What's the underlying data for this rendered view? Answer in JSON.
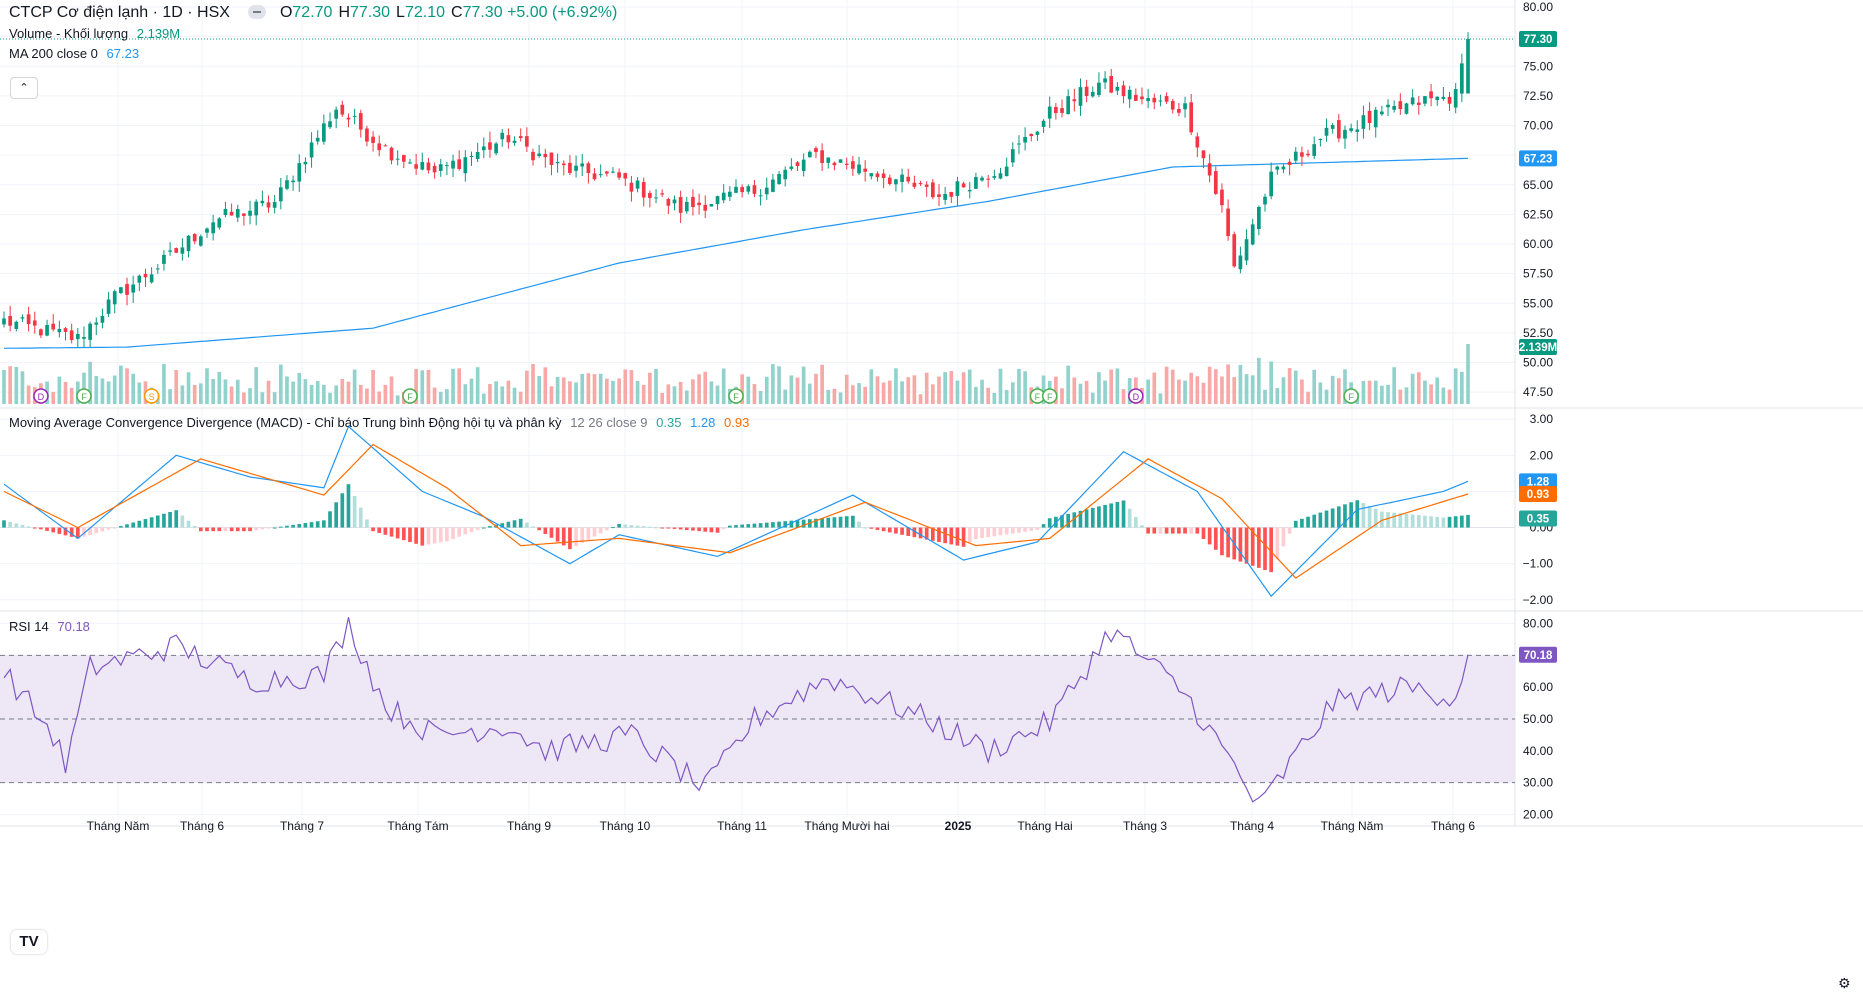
{
  "header": {
    "symbol_title": "CTCP Cơ điện lạnh · 1D · HSX",
    "ohlc": [
      {
        "label": "O",
        "value": "72.70"
      },
      {
        "label": "H",
        "value": "77.30"
      },
      {
        "label": "L",
        "value": "72.10"
      },
      {
        "label": "C",
        "value": "77.30"
      }
    ],
    "change": "+5.00 (+6.92%)"
  },
  "legends": {
    "volume_label": "Volume - Khối lượng",
    "volume_value": "2.139M",
    "ma_label": "MA 200 close 0",
    "ma_value": "67.23",
    "macd_label": "Moving Average Convergence Divergence (MACD) - Chỉ báo Trung bình Động hội tụ và phân kỳ",
    "macd_params": "12 26 close 9",
    "macd_hist_value": "0.35",
    "macd_value": "1.28",
    "macd_signal_value": "0.93",
    "rsi_label": "RSI 14",
    "rsi_value": "70.18"
  },
  "colors": {
    "up": "#089981",
    "down": "#f23645",
    "vol_up": "#92d2cc",
    "vol_down": "#f7a9a7",
    "ma": "#2196f3",
    "macd": "#2196f3",
    "signal": "#ff6d00",
    "hist_up_strong": "#26a69a",
    "hist_up_weak": "#b2dfdb",
    "hist_down_strong": "#ff5252",
    "hist_down_weak": "#ffcdd2",
    "rsi": "#7e57c2",
    "rsi_band": "#ede7f6"
  },
  "icons": {
    "logo": "tradingview-logo-icon",
    "settings": "gear-icon",
    "collapse": "chevron-up-icon"
  },
  "logo_text": "TV",
  "chart_data": [
    {
      "type": "candlestick",
      "ylim": [
        46.5,
        80
      ],
      "y_ticks": [
        "80.00",
        "77.50",
        "75.00",
        "72.50",
        "70.00",
        "67.50",
        "65.00",
        "62.50",
        "60.00",
        "57.50",
        "55.00",
        "52.50",
        "50.00",
        "47.50"
      ],
      "x_tick_labels": [
        "Tháng Năm",
        "Tháng 6",
        "Tháng 7",
        "Tháng Tám",
        "Tháng 9",
        "Tháng 10",
        "Tháng 11",
        "Tháng Mười hai",
        "2025",
        "Tháng Hai",
        "Tháng 3",
        "Tháng 4",
        "Tháng Năm",
        "Tháng 6"
      ],
      "last_price_label": "77.30",
      "ma_label_value": "67.23",
      "volume_label_value": "2.139M",
      "key_levels": [
        {
          "x": 0,
          "close": 53.5
        },
        {
          "x": 12,
          "close": 52.0
        },
        {
          "x": 18,
          "close": 55.5
        },
        {
          "x": 26,
          "close": 58.5
        },
        {
          "x": 34,
          "close": 62.0
        },
        {
          "x": 44,
          "close": 63.5
        },
        {
          "x": 54,
          "close": 71.5
        },
        {
          "x": 62,
          "close": 68.0
        },
        {
          "x": 70,
          "close": 66.0
        },
        {
          "x": 82,
          "close": 69.0
        },
        {
          "x": 90,
          "close": 66.5
        },
        {
          "x": 100,
          "close": 65.5
        },
        {
          "x": 110,
          "close": 63.0
        },
        {
          "x": 122,
          "close": 64.5
        },
        {
          "x": 132,
          "close": 67.5
        },
        {
          "x": 142,
          "close": 66.0
        },
        {
          "x": 152,
          "close": 64.0
        },
        {
          "x": 162,
          "close": 66.5
        },
        {
          "x": 170,
          "close": 71.0
        },
        {
          "x": 178,
          "close": 73.5
        },
        {
          "x": 186,
          "close": 72.0
        },
        {
          "x": 192,
          "close": 71.5
        },
        {
          "x": 198,
          "close": 63.0
        },
        {
          "x": 200,
          "close": 58.0
        },
        {
          "x": 206,
          "close": 65.5
        },
        {
          "x": 214,
          "close": 69.0
        },
        {
          "x": 222,
          "close": 70.5
        },
        {
          "x": 230,
          "close": 72.0
        },
        {
          "x": 236,
          "close": 72.5
        },
        {
          "x": 238,
          "close": 77.3
        }
      ],
      "ma200": [
        {
          "x": 0,
          "y": 51.2
        },
        {
          "x": 20,
          "y": 51.3
        },
        {
          "x": 60,
          "y": 52.9
        },
        {
          "x": 100,
          "y": 58.4
        },
        {
          "x": 130,
          "y": 61.2
        },
        {
          "x": 160,
          "y": 63.6
        },
        {
          "x": 190,
          "y": 66.5
        },
        {
          "x": 238,
          "y": 67.23
        }
      ],
      "signals": [
        {
          "x": 6,
          "letter": "D"
        },
        {
          "x": 13,
          "letter": "F"
        },
        {
          "x": 24,
          "letter": "S"
        },
        {
          "x": 66,
          "letter": "F"
        },
        {
          "x": 119,
          "letter": "F"
        },
        {
          "x": 168,
          "letter": "F"
        },
        {
          "x": 170,
          "letter": "F"
        },
        {
          "x": 184,
          "letter": "D"
        },
        {
          "x": 219,
          "letter": "F"
        }
      ]
    },
    {
      "type": "macd",
      "ylim": [
        -2.2,
        3.2
      ],
      "y_ticks": [
        "3.00",
        "2.00",
        "1.00",
        "0.00",
        "−1.00",
        "−2.00"
      ],
      "macd_line": [
        {
          "x": 0,
          "y": 1.2
        },
        {
          "x": 12,
          "y": -0.3
        },
        {
          "x": 28,
          "y": 2.0
        },
        {
          "x": 40,
          "y": 1.4
        },
        {
          "x": 52,
          "y": 1.1
        },
        {
          "x": 56,
          "y": 2.8
        },
        {
          "x": 68,
          "y": 1.0
        },
        {
          "x": 78,
          "y": 0.3
        },
        {
          "x": 92,
          "y": -1.0
        },
        {
          "x": 100,
          "y": -0.2
        },
        {
          "x": 116,
          "y": -0.8
        },
        {
          "x": 138,
          "y": 0.9
        },
        {
          "x": 156,
          "y": -0.9
        },
        {
          "x": 168,
          "y": -0.4
        },
        {
          "x": 182,
          "y": 2.1
        },
        {
          "x": 194,
          "y": 1.0
        },
        {
          "x": 206,
          "y": -1.9
        },
        {
          "x": 220,
          "y": 0.5
        },
        {
          "x": 234,
          "y": 1.0
        },
        {
          "x": 238,
          "y": 1.28
        }
      ],
      "signal_line": [
        {
          "x": 0,
          "y": 1.0
        },
        {
          "x": 12,
          "y": 0.0
        },
        {
          "x": 32,
          "y": 1.9
        },
        {
          "x": 52,
          "y": 0.9
        },
        {
          "x": 60,
          "y": 2.3
        },
        {
          "x": 72,
          "y": 1.1
        },
        {
          "x": 84,
          "y": -0.5
        },
        {
          "x": 100,
          "y": -0.3
        },
        {
          "x": 118,
          "y": -0.7
        },
        {
          "x": 140,
          "y": 0.7
        },
        {
          "x": 158,
          "y": -0.5
        },
        {
          "x": 170,
          "y": -0.3
        },
        {
          "x": 186,
          "y": 1.9
        },
        {
          "x": 198,
          "y": 0.8
        },
        {
          "x": 210,
          "y": -1.4
        },
        {
          "x": 224,
          "y": 0.2
        },
        {
          "x": 238,
          "y": 0.93
        }
      ],
      "histogram_last": 0.35
    },
    {
      "type": "line",
      "name": "RSI 14",
      "ylim": [
        17,
        83
      ],
      "y_ticks": [
        "80.00",
        "70.00",
        "60.00",
        "50.00",
        "40.00",
        "30.00",
        "20.00"
      ],
      "bands": {
        "upper": 70,
        "middle": 50,
        "lower": 30
      },
      "values": [
        {
          "x": 0,
          "y": 65
        },
        {
          "x": 8,
          "y": 45
        },
        {
          "x": 10,
          "y": 35
        },
        {
          "x": 14,
          "y": 66
        },
        {
          "x": 28,
          "y": 73
        },
        {
          "x": 40,
          "y": 62
        },
        {
          "x": 52,
          "y": 64
        },
        {
          "x": 56,
          "y": 80
        },
        {
          "x": 62,
          "y": 54
        },
        {
          "x": 70,
          "y": 45
        },
        {
          "x": 82,
          "y": 48
        },
        {
          "x": 88,
          "y": 40
        },
        {
          "x": 102,
          "y": 45
        },
        {
          "x": 114,
          "y": 28
        },
        {
          "x": 122,
          "y": 50
        },
        {
          "x": 134,
          "y": 63
        },
        {
          "x": 150,
          "y": 50
        },
        {
          "x": 160,
          "y": 40
        },
        {
          "x": 170,
          "y": 49
        },
        {
          "x": 180,
          "y": 78
        },
        {
          "x": 192,
          "y": 58
        },
        {
          "x": 200,
          "y": 35
        },
        {
          "x": 204,
          "y": 22
        },
        {
          "x": 216,
          "y": 55
        },
        {
          "x": 228,
          "y": 60
        },
        {
          "x": 236,
          "y": 57
        },
        {
          "x": 238,
          "y": 70.18
        }
      ]
    }
  ]
}
